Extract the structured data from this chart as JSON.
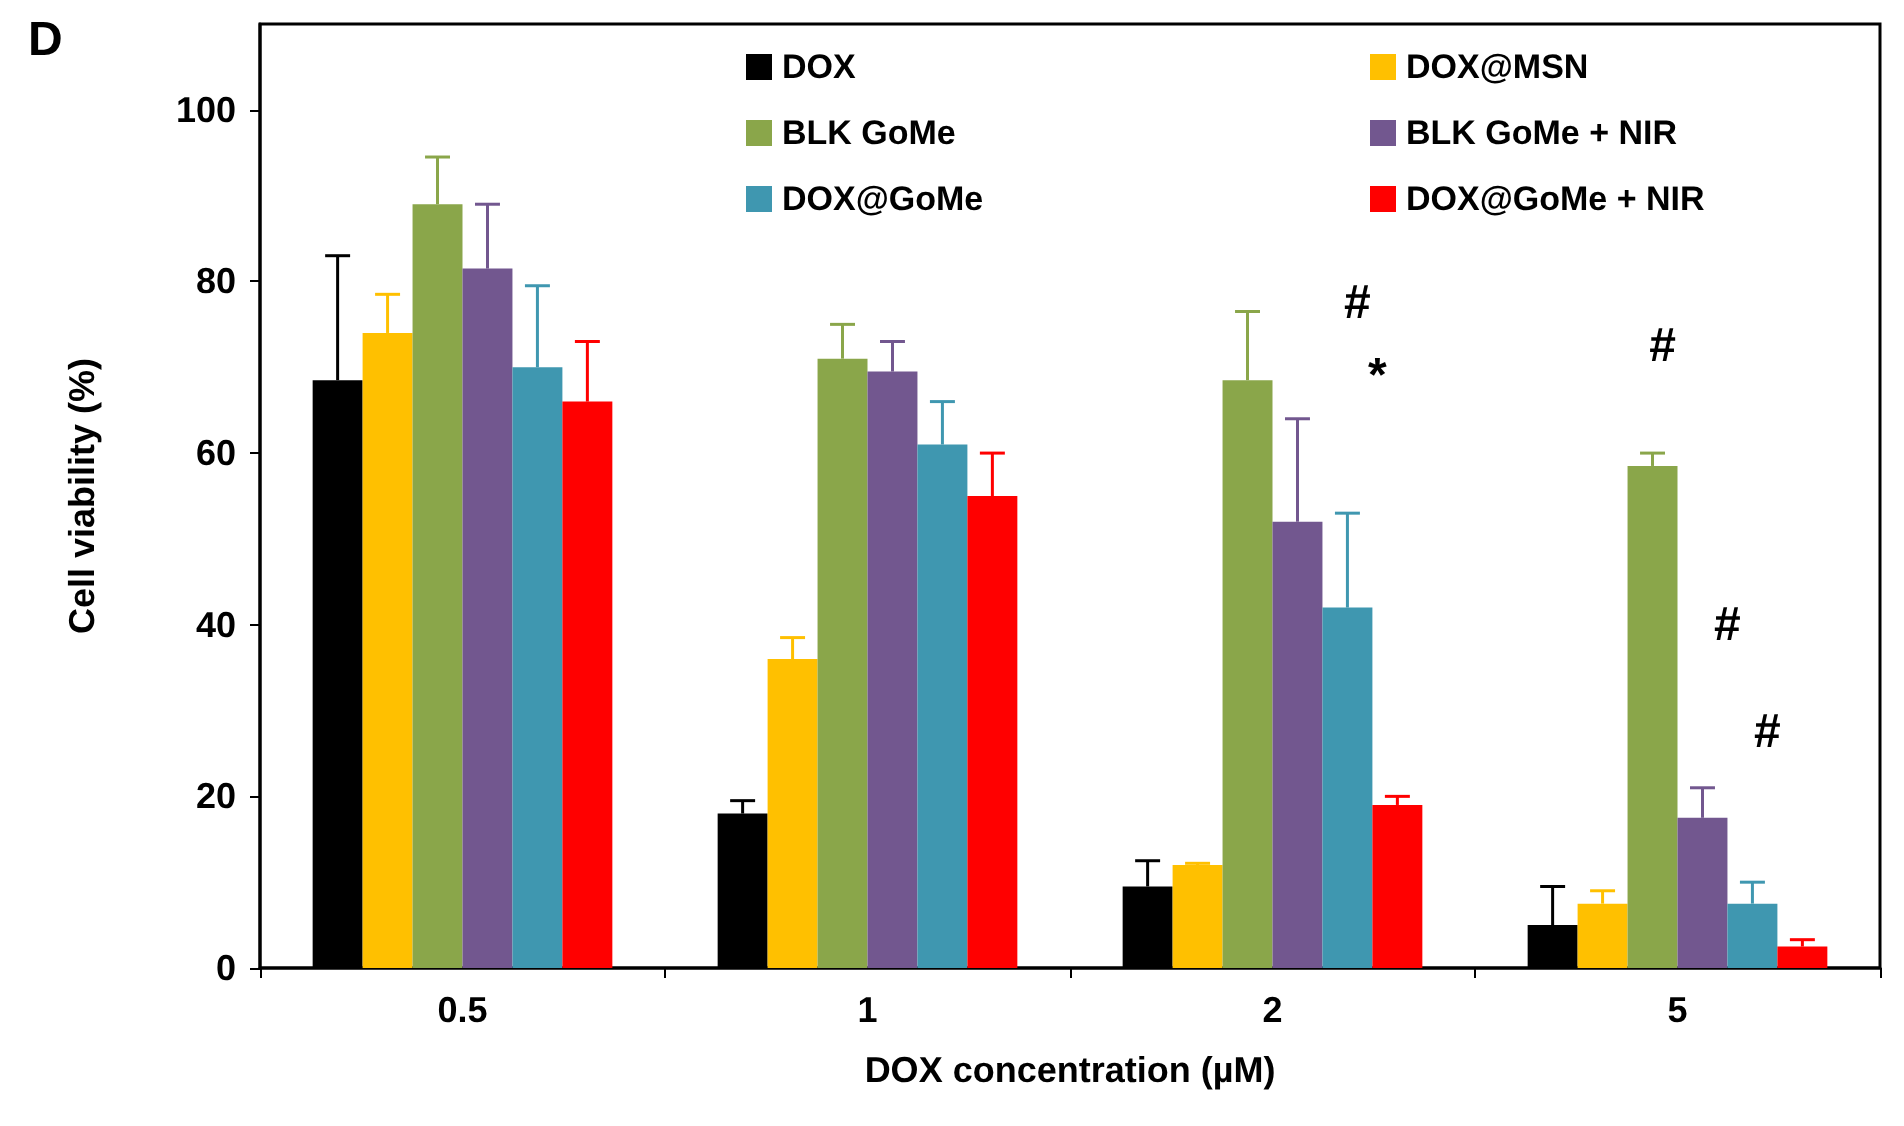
{
  "chart_data": {
    "type": "bar",
    "xlabel": "DOX concentration (µM)",
    "ylabel": "Cell viability (%)",
    "categories": [
      "0.5",
      "1",
      "2",
      "5"
    ],
    "series": [
      {
        "name": "DOX",
        "color": "#000000",
        "values": [
          68.5,
          18,
          9.5,
          5
        ],
        "errors": [
          [
            68.5,
            83
          ],
          [
            18,
            19.5
          ],
          [
            9.5,
            12.5
          ],
          [
            5,
            9.5
          ]
        ]
      },
      {
        "name": "DOX@MSN",
        "color": "#ffc000",
        "values": [
          74,
          36,
          12,
          7.5
        ],
        "errors": [
          [
            74,
            78.5
          ],
          [
            36,
            38.5
          ],
          [
            12,
            12.2
          ],
          [
            7.5,
            9
          ]
        ]
      },
      {
        "name": "BLK GoMe",
        "color": "#8aa64a",
        "values": [
          89,
          71,
          68.5,
          58.5
        ],
        "errors": [
          [
            89,
            94.5
          ],
          [
            71,
            75
          ],
          [
            68.5,
            76.5
          ],
          [
            58.5,
            60
          ]
        ]
      },
      {
        "name": "BLK GoMe + NIR",
        "color": "#72578f",
        "values": [
          81.5,
          69.5,
          52,
          17.5
        ],
        "errors": [
          [
            81.5,
            89
          ],
          [
            69.5,
            73
          ],
          [
            52,
            64
          ],
          [
            17.5,
            21
          ]
        ]
      },
      {
        "name": "DOX@GoMe",
        "color": "#3f97b0",
        "values": [
          70,
          61,
          42,
          7.5
        ],
        "errors": [
          [
            70,
            79.5
          ],
          [
            61,
            66
          ],
          [
            42,
            53
          ],
          [
            7.5,
            10
          ]
        ]
      },
      {
        "name": "DOX@GoMe + NIR",
        "color": "#ff0000",
        "values": [
          66,
          55,
          19,
          2.5
        ],
        "errors": [
          [
            66,
            73
          ],
          [
            55,
            60
          ],
          [
            19,
            20
          ],
          [
            2.5,
            3.3
          ]
        ]
      }
    ],
    "ylim": [
      0,
      110
    ],
    "yticks": [
      0,
      20,
      40,
      60,
      80,
      100
    ],
    "grid": false,
    "legend": "top right",
    "annotations": [
      "D",
      "#",
      "*",
      "#",
      "#",
      "#"
    ]
  }
}
